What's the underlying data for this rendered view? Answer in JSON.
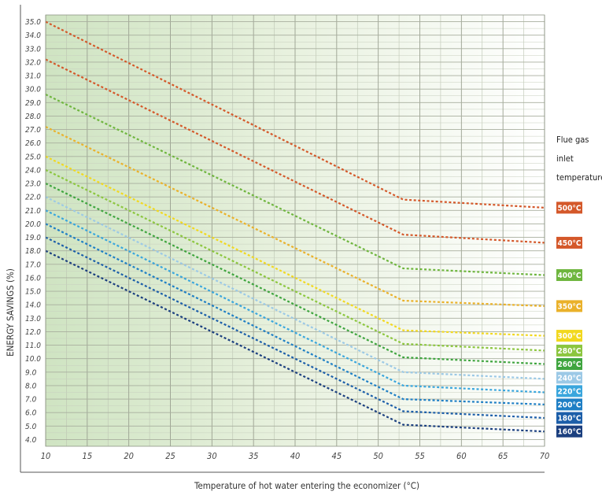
{
  "chart_data": {
    "type": "line",
    "ylabel": "ENERGY SAVINGS (%)",
    "xlabel": "Temperature of hot water entering the economizer (°C)",
    "xlim": [
      10,
      70
    ],
    "ylim": [
      3.5,
      35.5
    ],
    "x_ticks": [
      "10",
      "15",
      "20",
      "25",
      "30",
      "35",
      "40",
      "45",
      "50",
      "55",
      "60",
      "65",
      "70"
    ],
    "y_ticks": [
      "4.0",
      "5.0",
      "6.0",
      "7.0",
      "8.0",
      "9.0",
      "10.0",
      "11.0",
      "12.0",
      "13.0",
      "14.0",
      "15.0",
      "16.0",
      "17.0",
      "18.0",
      "19.0",
      "20.0",
      "21.0",
      "22.0",
      "23.0",
      "24.0",
      "25.0",
      "26.0",
      "27.0",
      "28.0",
      "29.0",
      "30.0",
      "31.0",
      "32.0",
      "33.0",
      "34.0",
      "35.0"
    ],
    "legend_title": [
      "Flue gas",
      "inlet",
      "temperature"
    ],
    "x": [
      10,
      53,
      70
    ],
    "series": [
      {
        "name": "500°C",
        "color": "#d4582a",
        "values": [
          35.0,
          21.8,
          21.2
        ]
      },
      {
        "name": "450°C",
        "color": "#d4582a",
        "values": [
          32.2,
          19.2,
          18.6
        ]
      },
      {
        "name": "400°C",
        "color": "#6fb63f",
        "values": [
          29.6,
          16.7,
          16.2
        ]
      },
      {
        "name": "350°C",
        "color": "#eab12a",
        "values": [
          27.2,
          14.3,
          13.9
        ]
      },
      {
        "name": "300°C",
        "color": "#f2d81f",
        "values": [
          25.0,
          12.1,
          11.7
        ]
      },
      {
        "name": "280°C",
        "color": "#8cc63f",
        "values": [
          24.0,
          11.1,
          10.6
        ]
      },
      {
        "name": "260°C",
        "color": "#3fa53f",
        "values": [
          23.0,
          10.1,
          9.6
        ]
      },
      {
        "name": "240°C",
        "color": "#9cc9e6",
        "values": [
          22.0,
          9.0,
          8.5
        ]
      },
      {
        "name": "220°C",
        "color": "#3aa6dd",
        "values": [
          21.0,
          8.0,
          7.5
        ]
      },
      {
        "name": "200°C",
        "color": "#1f7fc5",
        "values": [
          20.0,
          7.0,
          6.6
        ]
      },
      {
        "name": "180°C",
        "color": "#1c5ea9",
        "values": [
          19.0,
          6.1,
          5.6
        ]
      },
      {
        "name": "160°C",
        "color": "#1b3f7f",
        "values": [
          18.0,
          5.1,
          4.6
        ]
      }
    ]
  }
}
